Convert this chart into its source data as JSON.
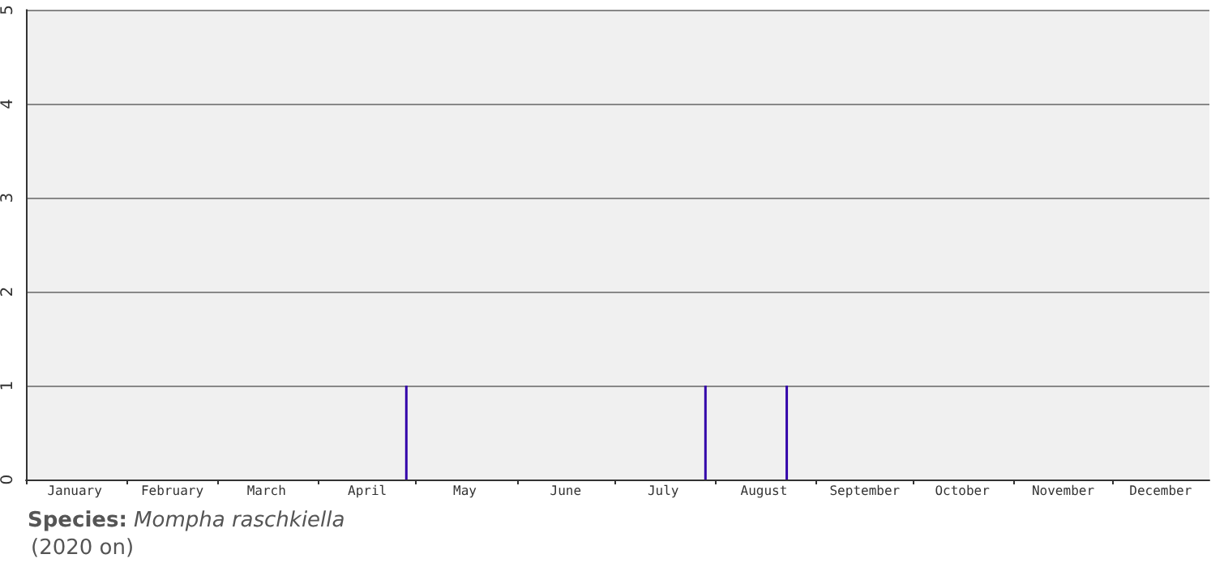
{
  "chart_data": {
    "type": "bar",
    "title": "Species: Mompha raschkiella",
    "subtitle": "(2020 on)",
    "x": [
      "--04-28",
      "--07-29",
      "--08-23"
    ],
    "values": [
      1,
      1,
      1
    ],
    "color": "#3300aa",
    "xlim": [
      "--01-01",
      "--12-31"
    ],
    "xticks": [
      {
        "value": "--01-01",
        "label": null
      },
      {
        "value": "--01-16",
        "label": "January"
      },
      {
        "value": "--02-01",
        "label": null
      },
      {
        "value": "--02-15",
        "label": "February"
      },
      {
        "value": "--03-01",
        "label": null
      },
      {
        "value": "--03-16",
        "label": "March"
      },
      {
        "value": "--04-01",
        "label": null
      },
      {
        "value": "--04-16",
        "label": "April"
      },
      {
        "value": "--05-01",
        "label": null
      },
      {
        "value": "--05-16",
        "label": "May"
      },
      {
        "value": "--06-01",
        "label": null
      },
      {
        "value": "--06-16",
        "label": "June"
      },
      {
        "value": "--07-01",
        "label": null
      },
      {
        "value": "--07-16",
        "label": "July"
      },
      {
        "value": "--08-01",
        "label": null
      },
      {
        "value": "--08-16",
        "label": "August"
      },
      {
        "value": "--09-01",
        "label": null
      },
      {
        "value": "--09-16",
        "label": "September"
      },
      {
        "value": "--10-01",
        "label": null
      },
      {
        "value": "--10-16",
        "label": "October"
      },
      {
        "value": "--11-01",
        "label": null
      },
      {
        "value": "--11-16",
        "label": "November"
      },
      {
        "value": "--12-01",
        "label": null
      },
      {
        "value": "--12-16",
        "label": "December"
      }
    ],
    "ylim": [
      0,
      5
    ],
    "yticks": [
      0,
      1,
      2,
      3,
      4,
      5
    ],
    "grid": "y"
  }
}
